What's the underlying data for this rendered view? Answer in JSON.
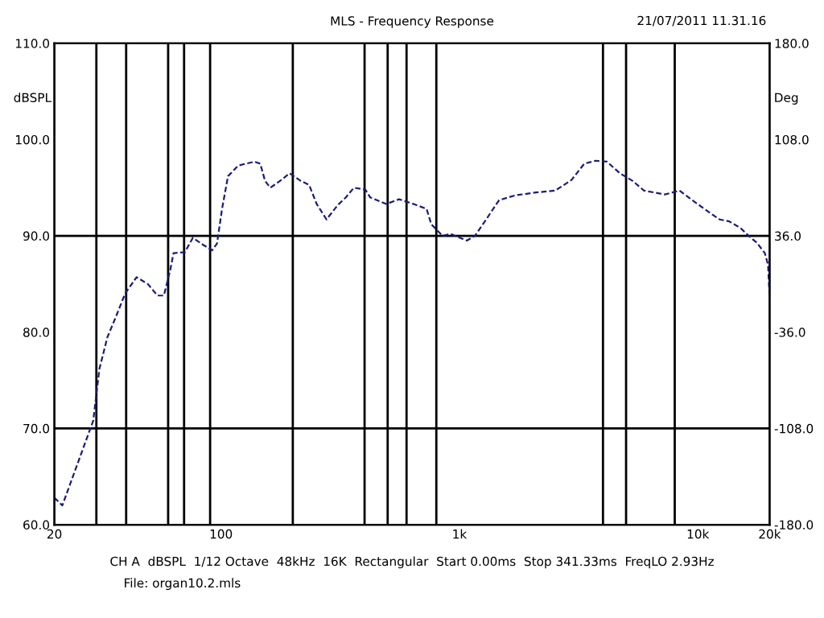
{
  "chart_data": {
    "type": "line",
    "title": "MLS - Frequency Response",
    "ylabel": "dBSPL",
    "y2label": "Deg",
    "log": "x",
    "xlim": [
      20,
      20000
    ],
    "xticks": [
      {
        "value": 20,
        "label": "20"
      },
      {
        "value": 100,
        "label": "100"
      },
      {
        "value": 1000,
        "label": "1k"
      },
      {
        "value": 10000,
        "label": "10k"
      },
      {
        "value": 20000,
        "label": "20k"
      }
    ],
    "ylim": [
      60,
      110
    ],
    "yticks": [
      {
        "value": 60,
        "label": "60.0"
      },
      {
        "value": 70,
        "label": "70.0"
      },
      {
        "value": 80,
        "label": "80.0"
      },
      {
        "value": 90,
        "label": "90.0"
      },
      {
        "value": 100,
        "label": "100.0"
      },
      {
        "value": 110,
        "label": "110.0"
      }
    ],
    "y2lim": [
      -180,
      180
    ],
    "y2ticks": [
      {
        "value": -180,
        "label": "-180.0"
      },
      {
        "value": -108,
        "label": "-108.0"
      },
      {
        "value": -36,
        "label": "-36.0"
      },
      {
        "value": 36,
        "label": "36.0"
      },
      {
        "value": 108,
        "label": "108.0"
      },
      {
        "value": 180,
        "label": "180.0"
      }
    ],
    "grid": false,
    "legend": false,
    "marker": "none",
    "line_style": "dashed",
    "x": [
      20,
      21.6,
      29.1,
      30.9,
      33.4,
      36.1,
      39.6,
      44.2,
      49.3,
      54.1,
      57.6,
      61.3,
      63.2,
      70.5,
      76.2,
      84.9,
      91.8,
      96.2,
      101,
      107,
      118,
      138,
      146,
      153,
      161,
      179,
      194,
      216,
      234,
      252,
      277,
      309,
      334,
      361,
      403,
      422,
      493,
      558,
      643,
      728,
      762,
      849,
      918,
      1074,
      1161,
      1294,
      1466,
      1710,
      2094,
      2523,
      2952,
      3342,
      3725,
      4157,
      4708,
      5333,
      5944,
      7276,
      8375,
      9480,
      11070,
      12350,
      13550,
      15110,
      16340,
      17660,
      19100,
      19700,
      20000
    ],
    "series": [
      {
        "color": "#1c1c7a",
        "values": [
          62.8,
          62.0,
          70.8,
          76.2,
          79.5,
          81.5,
          84.0,
          85.7,
          85.0,
          83.8,
          83.8,
          86.5,
          88.2,
          88.3,
          89.8,
          89.0,
          88.5,
          89.2,
          92.8,
          96.2,
          97.3,
          97.7,
          97.5,
          95.7,
          95.0,
          95.8,
          96.5,
          95.7,
          95.3,
          93.3,
          91.7,
          93.2,
          94.0,
          95.0,
          94.8,
          94.0,
          93.3,
          93.8,
          93.3,
          92.8,
          91.2,
          90.0,
          90.2,
          89.5,
          90.0,
          91.7,
          93.7,
          94.2,
          94.5,
          94.7,
          95.8,
          97.5,
          97.8,
          97.7,
          96.5,
          95.7,
          94.7,
          94.3,
          94.7,
          93.7,
          92.5,
          91.7,
          91.5,
          90.8,
          90.0,
          89.3,
          88.2,
          87.0,
          83.5
        ]
      }
    ],
    "ref_lines": [
      {
        "axis": "y",
        "value": 90,
        "color": "#000000"
      },
      {
        "axis": "y",
        "value": 70,
        "color": "#000000"
      },
      {
        "axis": "x",
        "value": 30,
        "color": "#000000"
      },
      {
        "axis": "x",
        "value": 40,
        "color": "#000000"
      },
      {
        "axis": "x",
        "value": 60,
        "color": "#000000"
      },
      {
        "axis": "x",
        "value": 70,
        "color": "#000000"
      },
      {
        "axis": "x",
        "value": 90,
        "color": "#000000"
      },
      {
        "axis": "x",
        "value": 200,
        "color": "#000000"
      },
      {
        "axis": "x",
        "value": 400,
        "color": "#000000"
      },
      {
        "axis": "x",
        "value": 500,
        "color": "#000000"
      },
      {
        "axis": "x",
        "value": 600,
        "color": "#000000"
      },
      {
        "axis": "x",
        "value": 800,
        "color": "#000000"
      },
      {
        "axis": "x",
        "value": 4000,
        "color": "#000000"
      },
      {
        "axis": "x",
        "value": 5000,
        "color": "#000000"
      },
      {
        "axis": "x",
        "value": 8000,
        "color": "#000000"
      }
    ],
    "annotations": [
      "21/07/2011 11.31.16",
      "CH A  dBSPL  1/12 Octave  48kHz  16K  Rectangular  Start 0.00ms  Stop 341.33ms  FreqLO 2.93Hz",
      "File: organ10.2.mls"
    ]
  }
}
